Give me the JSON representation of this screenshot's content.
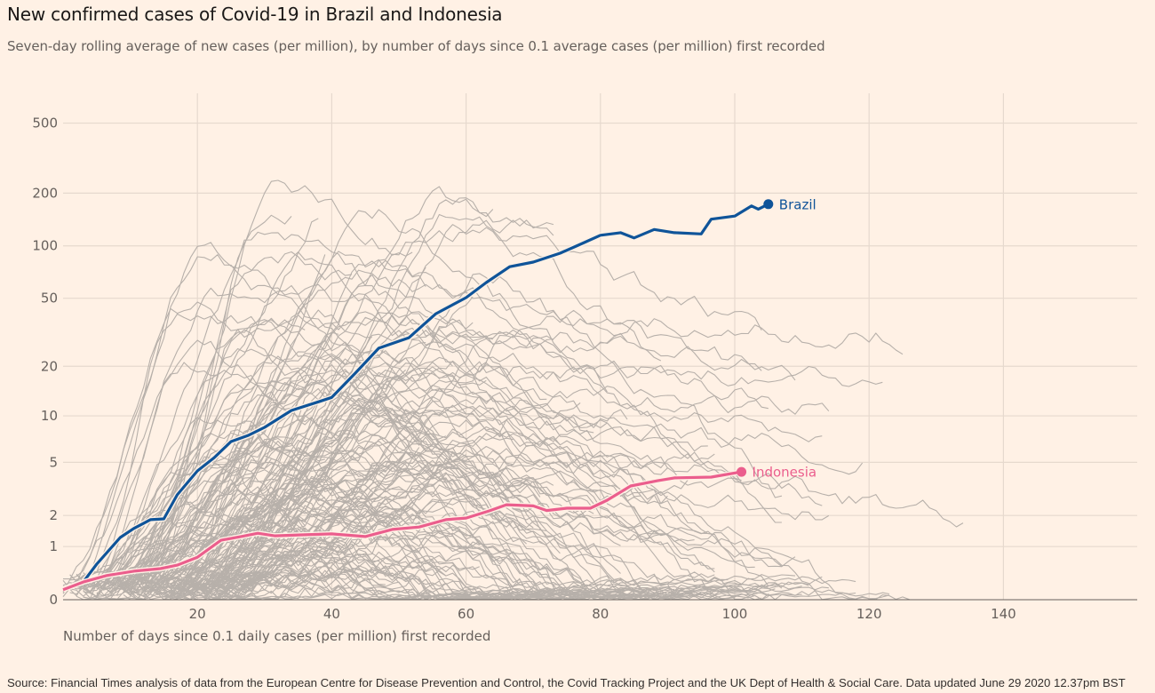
{
  "header": {
    "title": "New confirmed cases of Covid-19 in Brazil and Indonesia",
    "subtitle": "Seven-day rolling average of new cases (per million), by number of days since 0.1 average cases (per million) first recorded"
  },
  "footer": {
    "source": "Source: Financial Times analysis of data from the European Centre for Disease Prevention and Control, the Covid Tracking Project and the UK Dept of Health & Social Care. Data updated June 29 2020 12.37pm BST"
  },
  "colors": {
    "background": "#fff1e5",
    "grid": "#e6d9ce",
    "axis": "#66605c",
    "context_lines": "#b7b0aa",
    "brazil": "#0f5499",
    "indonesia": "#eb5e8d"
  },
  "chart_data": {
    "type": "line",
    "title": "New confirmed cases of Covid-19 in Brazil and Indonesia",
    "subtitle": "Seven-day rolling average of new cases (per million), by number of days since 0.1 average cases (per million) first recorded",
    "xlabel": "Number of days since 0.1 daily cases (per million) first recorded",
    "ylabel": "",
    "yscale": "log(1+y)",
    "xlim": [
      0,
      160
    ],
    "ylim": [
      0,
      700
    ],
    "x_ticks": [
      20,
      40,
      60,
      80,
      100,
      120,
      140
    ],
    "y_ticks": [
      0,
      1,
      2,
      5,
      10,
      20,
      50,
      100,
      200,
      500
    ],
    "grid": true,
    "legend": "direct labels at line ends",
    "series": [
      {
        "name": "Brazil",
        "label": "Brazil",
        "color": "#0f5499",
        "x": [
          0,
          3,
          5,
          8.5,
          10.5,
          13,
          15,
          17,
          20,
          22.5,
          25,
          27.5,
          30,
          34,
          38,
          40,
          43.5,
          47,
          51.5,
          55.5,
          60,
          63,
          66.5,
          70,
          74,
          77,
          80,
          83,
          85,
          88,
          91,
          95,
          96.5,
          100,
          102.5,
          103.5,
          105
        ],
        "values": [
          0.15,
          0.26,
          0.59,
          1.25,
          1.53,
          1.84,
          1.87,
          2.93,
          4.37,
          5.38,
          6.87,
          7.5,
          8.47,
          10.8,
          12.2,
          13.0,
          18.2,
          25.6,
          29.5,
          40.7,
          50.4,
          61.6,
          76,
          80.7,
          90.8,
          102,
          115,
          119,
          111,
          124,
          119,
          117,
          142,
          148,
          169,
          162,
          173
        ]
      },
      {
        "name": "Indonesia",
        "label": "Indonesia",
        "color": "#eb5e8d",
        "x": [
          0,
          3,
          6.5,
          10.5,
          14.5,
          17,
          20,
          23.5,
          26.5,
          29,
          31.5,
          35.5,
          40,
          45,
          49,
          53,
          57,
          60,
          63.5,
          66,
          70,
          72,
          75,
          78.5,
          81,
          84.5,
          88.5,
          91,
          96.5,
          101
        ],
        "values": [
          0.14,
          0.26,
          0.37,
          0.45,
          0.5,
          0.57,
          0.74,
          1.17,
          1.28,
          1.38,
          1.3,
          1.33,
          1.36,
          1.28,
          1.5,
          1.58,
          1.84,
          1.9,
          2.19,
          2.45,
          2.4,
          2.2,
          2.3,
          2.3,
          2.66,
          3.41,
          3.72,
          3.9,
          3.95,
          4.3
        ]
      }
    ],
    "context_series": {
      "description": "Other countries (unlabelled grey lines)",
      "count": 170,
      "color": "#b7b0aa"
    }
  }
}
